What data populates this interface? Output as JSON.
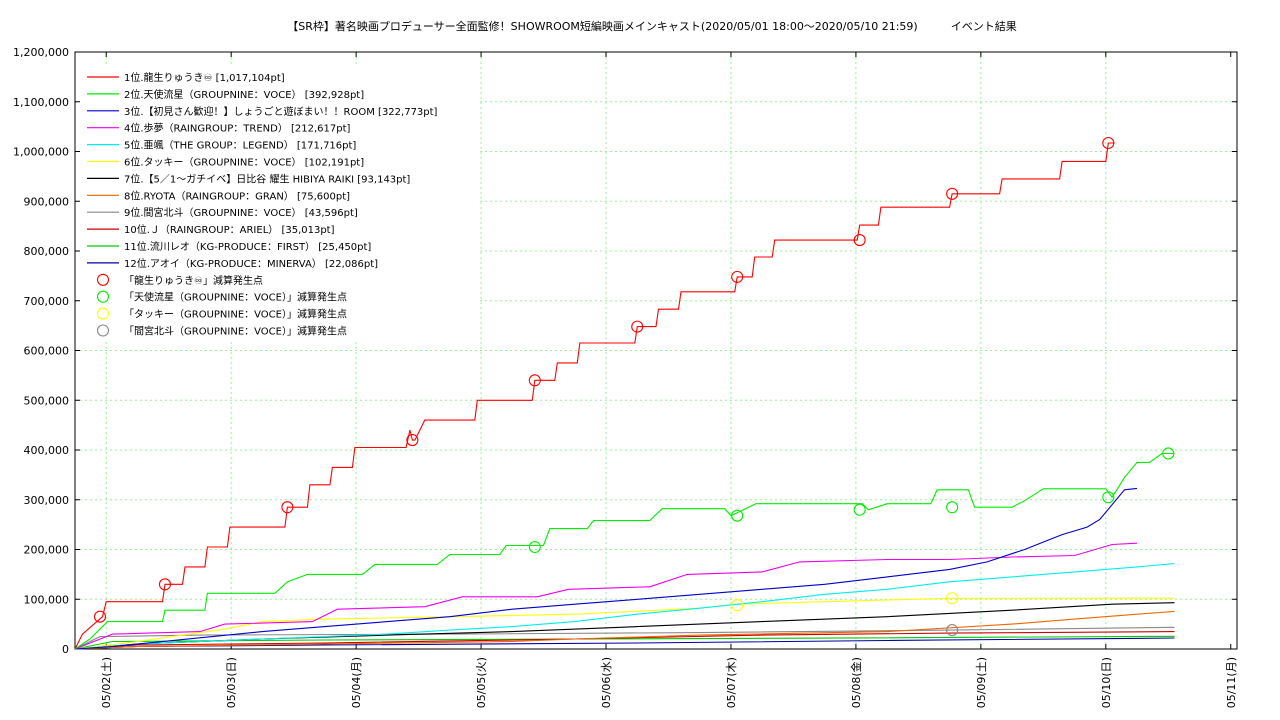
{
  "chart_data": {
    "type": "line",
    "title": "【SR枠】著名映画プロデューサー全面監修！SHOWROOM短編映画メインキャスト(2020/05/01 18:00〜2020/05/10 21:59)　　　イベント結果",
    "xlabel": "",
    "ylabel": "",
    "ylim": [
      0,
      1200000
    ],
    "yticks": [
      "0",
      "100,000",
      "200,000",
      "300,000",
      "400,000",
      "500,000",
      "600,000",
      "700,000",
      "800,000",
      "900,000",
      "1,000,000",
      "1,100,000",
      "1,200,000"
    ],
    "xticks": [
      "05/02(土)",
      "05/03(日)",
      "05/04(月)",
      "05/05(火)",
      "05/06(水)",
      "05/07(木)",
      "05/08(金)",
      "05/09(土)",
      "05/10(日)",
      "05/11(月)"
    ],
    "x_unit": "days since 05/01 18:00",
    "xlim": [
      0,
      9.3
    ],
    "grid": true,
    "legend_position": "top-left",
    "series": [
      {
        "name": "1位.龍生りゅうき♾ [1,017,104pt]",
        "color": "#ff0000",
        "points": [
          [
            0,
            0
          ],
          [
            0.06,
            30000
          ],
          [
            0.22,
            65000
          ],
          [
            0.25,
            95000
          ],
          [
            0.7,
            95000
          ],
          [
            0.72,
            130000
          ],
          [
            0.86,
            130000
          ],
          [
            0.88,
            165000
          ],
          [
            1.04,
            165000
          ],
          [
            1.06,
            205000
          ],
          [
            1.22,
            205000
          ],
          [
            1.24,
            245000
          ],
          [
            1.68,
            245000
          ],
          [
            1.7,
            285000
          ],
          [
            1.86,
            285000
          ],
          [
            1.88,
            330000
          ],
          [
            2.04,
            330000
          ],
          [
            2.06,
            365000
          ],
          [
            2.22,
            365000
          ],
          [
            2.24,
            405000
          ],
          [
            2.65,
            405000
          ],
          [
            2.68,
            440000
          ],
          [
            2.7,
            420000
          ],
          [
            2.72,
            420000
          ],
          [
            2.8,
            460000
          ],
          [
            3.2,
            460000
          ],
          [
            3.22,
            500000
          ],
          [
            3.66,
            500000
          ],
          [
            3.68,
            540000
          ],
          [
            3.84,
            540000
          ],
          [
            3.86,
            575000
          ],
          [
            4.02,
            575000
          ],
          [
            4.04,
            615000
          ],
          [
            4.48,
            615000
          ],
          [
            4.5,
            648000
          ],
          [
            4.65,
            648000
          ],
          [
            4.67,
            683000
          ],
          [
            4.83,
            683000
          ],
          [
            4.85,
            718000
          ],
          [
            5.28,
            718000
          ],
          [
            5.3,
            748000
          ],
          [
            5.42,
            748000
          ],
          [
            5.44,
            788000
          ],
          [
            5.58,
            788000
          ],
          [
            5.6,
            822000
          ],
          [
            6.26,
            822000
          ],
          [
            6.28,
            852000
          ],
          [
            6.43,
            852000
          ],
          [
            6.45,
            888000
          ],
          [
            7.0,
            888000
          ],
          [
            7.02,
            915000
          ],
          [
            7.4,
            915000
          ],
          [
            7.42,
            945000
          ],
          [
            7.88,
            945000
          ],
          [
            7.9,
            980000
          ],
          [
            8.25,
            980000
          ],
          [
            8.27,
            1017104
          ],
          [
            8.32,
            1017104
          ]
        ]
      },
      {
        "name": "2位.天使流星（GROUPNINE：VOCE） [392,928pt]",
        "color": "#00ee00",
        "points": [
          [
            0,
            0
          ],
          [
            0.12,
            20000
          ],
          [
            0.26,
            55000
          ],
          [
            0.7,
            55000
          ],
          [
            0.72,
            78000
          ],
          [
            1.04,
            78000
          ],
          [
            1.06,
            112000
          ],
          [
            1.6,
            112000
          ],
          [
            1.7,
            135000
          ],
          [
            1.86,
            150000
          ],
          [
            2.3,
            150000
          ],
          [
            2.4,
            170000
          ],
          [
            2.9,
            170000
          ],
          [
            3.0,
            190000
          ],
          [
            3.4,
            190000
          ],
          [
            3.45,
            208000
          ],
          [
            3.75,
            208000
          ],
          [
            3.8,
            242000
          ],
          [
            4.1,
            242000
          ],
          [
            4.15,
            258000
          ],
          [
            4.6,
            258000
          ],
          [
            4.7,
            282000
          ],
          [
            5.2,
            282000
          ],
          [
            5.25,
            268000
          ],
          [
            5.35,
            280000
          ],
          [
            5.45,
            292000
          ],
          [
            6.3,
            292000
          ],
          [
            6.35,
            280000
          ],
          [
            6.5,
            292000
          ],
          [
            6.85,
            292000
          ],
          [
            6.9,
            320000
          ],
          [
            7.15,
            320000
          ],
          [
            7.2,
            285000
          ],
          [
            7.5,
            285000
          ],
          [
            7.6,
            298000
          ],
          [
            7.75,
            322000
          ],
          [
            8.25,
            322000
          ],
          [
            8.3,
            305000
          ],
          [
            8.4,
            345000
          ],
          [
            8.5,
            375000
          ],
          [
            8.6,
            375000
          ],
          [
            8.7,
            393000
          ],
          [
            8.8,
            393000
          ]
        ]
      },
      {
        "name": "3位.【初見さん歓迎！】しょうごと遊ぼまい！！ROOM [322,773pt]",
        "color": "#0000cc",
        "points": [
          [
            0,
            0
          ],
          [
            0.3,
            5000
          ],
          [
            1.5,
            35000
          ],
          [
            2.0,
            45000
          ],
          [
            2.5,
            55000
          ],
          [
            3.0,
            65000
          ],
          [
            3.5,
            80000
          ],
          [
            4.0,
            90000
          ],
          [
            4.5,
            100000
          ],
          [
            5.0,
            110000
          ],
          [
            5.5,
            120000
          ],
          [
            6.0,
            130000
          ],
          [
            6.5,
            145000
          ],
          [
            7.0,
            160000
          ],
          [
            7.3,
            175000
          ],
          [
            7.6,
            200000
          ],
          [
            7.9,
            230000
          ],
          [
            8.1,
            245000
          ],
          [
            8.2,
            260000
          ],
          [
            8.3,
            290000
          ],
          [
            8.4,
            320000
          ],
          [
            8.5,
            322773
          ]
        ]
      },
      {
        "name": "4位.歩夢（RAINGROUP：TREND） [212,617pt]",
        "color": "#ee00ee",
        "points": [
          [
            0,
            0
          ],
          [
            0.3,
            30000
          ],
          [
            1.0,
            35000
          ],
          [
            1.2,
            50000
          ],
          [
            1.9,
            55000
          ],
          [
            2.1,
            80000
          ],
          [
            2.8,
            85000
          ],
          [
            3.1,
            105000
          ],
          [
            3.7,
            105000
          ],
          [
            3.95,
            120000
          ],
          [
            4.6,
            125000
          ],
          [
            4.9,
            150000
          ],
          [
            5.5,
            155000
          ],
          [
            5.8,
            175000
          ],
          [
            6.5,
            180000
          ],
          [
            7.0,
            180000
          ],
          [
            7.5,
            185000
          ],
          [
            8.0,
            188000
          ],
          [
            8.3,
            210000
          ],
          [
            8.5,
            212617
          ]
        ]
      },
      {
        "name": "5位.亜颯（THE GROUP：LEGEND） [171,716pt]",
        "color": "#00eeee",
        "points": [
          [
            0,
            0
          ],
          [
            0.5,
            10000
          ],
          [
            1.5,
            20000
          ],
          [
            2.5,
            30000
          ],
          [
            3.0,
            38000
          ],
          [
            3.5,
            45000
          ],
          [
            4.0,
            55000
          ],
          [
            4.5,
            70000
          ],
          [
            5.0,
            82000
          ],
          [
            5.5,
            95000
          ],
          [
            6.0,
            110000
          ],
          [
            6.5,
            120000
          ],
          [
            7.0,
            135000
          ],
          [
            7.5,
            145000
          ],
          [
            8.0,
            155000
          ],
          [
            8.5,
            165000
          ],
          [
            8.8,
            171716
          ]
        ]
      },
      {
        "name": "6位.タッキー（GROUPNINE：VOCE） [102,191pt]",
        "color": "#ffff00",
        "points": [
          [
            0,
            0
          ],
          [
            0.5,
            15000
          ],
          [
            1.2,
            40000
          ],
          [
            1.5,
            55000
          ],
          [
            2.0,
            60000
          ],
          [
            3.0,
            65000
          ],
          [
            4.0,
            70000
          ],
          [
            5.0,
            82000
          ],
          [
            5.3,
            90000
          ],
          [
            6.0,
            95000
          ],
          [
            7.0,
            102000
          ],
          [
            8.8,
            102191
          ]
        ]
      },
      {
        "name": "7位.【5／1〜ガチイベ】日比谷 耀生 HIBIYA RAIKI [93,143pt]",
        "color": "#000000",
        "points": [
          [
            0,
            0
          ],
          [
            0.5,
            10000
          ],
          [
            1.5,
            20000
          ],
          [
            2.5,
            28000
          ],
          [
            3.5,
            35000
          ],
          [
            4.5,
            45000
          ],
          [
            5.5,
            55000
          ],
          [
            6.5,
            65000
          ],
          [
            7.5,
            78000
          ],
          [
            8.3,
            90000
          ],
          [
            8.8,
            93143
          ]
        ]
      },
      {
        "name": "8位.RYOTA（RAINGROUP：GRAN） [75,600pt]",
        "color": "#ee6600",
        "points": [
          [
            0,
            0
          ],
          [
            0.5,
            5000
          ],
          [
            2.0,
            10000
          ],
          [
            3.5,
            15000
          ],
          [
            4.0,
            20000
          ],
          [
            5.0,
            28000
          ],
          [
            6.5,
            35000
          ],
          [
            7.5,
            50000
          ],
          [
            8.0,
            60000
          ],
          [
            8.5,
            70000
          ],
          [
            8.8,
            75600
          ]
        ]
      },
      {
        "name": "9位.間宮北斗（GROUPNINE：VOCE） [43,596pt]",
        "color": "#888888",
        "points": [
          [
            0,
            0
          ],
          [
            0.2,
            25000
          ],
          [
            1.0,
            28000
          ],
          [
            3.0,
            30000
          ],
          [
            5.0,
            33000
          ],
          [
            7.0,
            38000
          ],
          [
            8.8,
            43596
          ]
        ]
      },
      {
        "name": "10位.Ｊ（RAINGROUP：ARIEL） [35,013pt]",
        "color": "#cc0000",
        "points": [
          [
            0,
            0
          ],
          [
            0.5,
            8000
          ],
          [
            2.0,
            12000
          ],
          [
            4.0,
            20000
          ],
          [
            5.5,
            28000
          ],
          [
            7.0,
            32000
          ],
          [
            8.8,
            35013
          ]
        ]
      },
      {
        "name": "11位.流川レオ（KG-PRODUCE：FIRST） [25,450pt]",
        "color": "#00cc00",
        "points": [
          [
            0,
            0
          ],
          [
            0.3,
            15000
          ],
          [
            2.0,
            18000
          ],
          [
            4.0,
            20000
          ],
          [
            6.0,
            22000
          ],
          [
            8.8,
            25450
          ]
        ]
      },
      {
        "name": "12位.アオイ（KG-PRODUCE：MINERVA） [22,086pt]",
        "color": "#0000aa",
        "points": [
          [
            0,
            0
          ],
          [
            0.5,
            5000
          ],
          [
            2.0,
            8000
          ],
          [
            4.5,
            12000
          ],
          [
            6.5,
            17000
          ],
          [
            8.8,
            22086
          ]
        ]
      }
    ],
    "markers": [
      {
        "name": "「龍生りゅうき♾」減算発生点",
        "color": "#ff0000",
        "points": [
          [
            0.2,
            65000
          ],
          [
            0.72,
            130000
          ],
          [
            1.7,
            285000
          ],
          [
            2.7,
            420000
          ],
          [
            3.68,
            540000
          ],
          [
            4.5,
            648000
          ],
          [
            5.3,
            748000
          ],
          [
            6.28,
            822000
          ],
          [
            7.02,
            915000
          ],
          [
            8.27,
            1017104
          ]
        ]
      },
      {
        "name": "「天使流星（GROUPNINE：VOCE）」減算発生点",
        "color": "#00ee00",
        "points": [
          [
            3.68,
            205000
          ],
          [
            5.3,
            268000
          ],
          [
            6.28,
            280000
          ],
          [
            7.02,
            285000
          ],
          [
            8.27,
            305000
          ],
          [
            8.75,
            393000
          ]
        ]
      },
      {
        "name": "「タッキー（GROUPNINE：VOCE）」減算発生点",
        "color": "#ffff00",
        "points": [
          [
            5.3,
            88000
          ],
          [
            7.02,
            102000
          ]
        ]
      },
      {
        "name": "「間宮北斗（GROUPNINE：VOCE）」減算発生点",
        "color": "#888888",
        "points": [
          [
            7.02,
            38000
          ]
        ]
      }
    ]
  }
}
